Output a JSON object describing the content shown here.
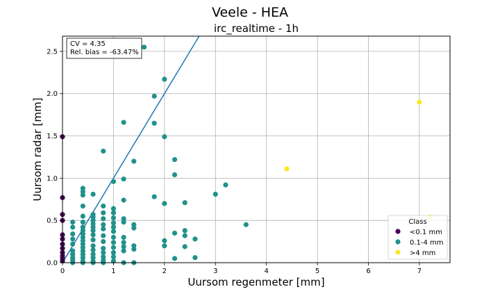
{
  "chart_data": {
    "type": "scatter",
    "suptitle": "Veele - HEA",
    "title": "irc_realtime - 1h",
    "xlabel": "Uursom regenmeter [mm]",
    "ylabel": "Uursom radar [mm]",
    "xlim": [
      0,
      7.6
    ],
    "ylim": [
      0,
      2.68
    ],
    "xticks": [
      0,
      1,
      2,
      3,
      4,
      5,
      6,
      7
    ],
    "yticks": [
      0.0,
      0.5,
      1.0,
      1.5,
      2.0,
      2.5
    ],
    "ytick_labels": [
      "0.0",
      "0.5",
      "1.0",
      "1.5",
      "2.0",
      "2.5"
    ],
    "grid": true,
    "stats": {
      "cv": "CV = 4.35",
      "bias": "Rel. bias = -63.47%"
    },
    "fit_line": {
      "x": [
        0,
        2.68
      ],
      "y": [
        0,
        2.68
      ]
    },
    "legend": {
      "title": "Class",
      "position": "lower right"
    },
    "series": [
      {
        "name": "<0.1 mm",
        "color": "#440154",
        "points": [
          [
            0,
            1.49
          ],
          [
            0,
            0.77
          ],
          [
            0,
            0.57
          ],
          [
            0,
            0.5
          ],
          [
            0,
            0.33
          ],
          [
            0,
            0.28
          ],
          [
            0,
            0.22
          ],
          [
            0,
            0.17
          ],
          [
            0,
            0.12
          ],
          [
            0,
            0.08
          ],
          [
            0,
            0.05
          ],
          [
            0,
            0.02
          ]
        ]
      },
      {
        "name": "0.1-4 mm",
        "color": "#21918c",
        "points": [
          [
            0.2,
            0.48
          ],
          [
            0.2,
            0.42
          ],
          [
            0.2,
            0.34
          ],
          [
            0.2,
            0.28
          ],
          [
            0.2,
            0.22
          ],
          [
            0.2,
            0.14
          ],
          [
            0.2,
            0.1
          ],
          [
            0.2,
            0.06
          ],
          [
            0.2,
            0.03
          ],
          [
            0.2,
            0.0
          ],
          [
            0.4,
            0.88
          ],
          [
            0.4,
            0.84
          ],
          [
            0.4,
            0.8
          ],
          [
            0.4,
            0.67
          ],
          [
            0.4,
            0.55
          ],
          [
            0.4,
            0.48
          ],
          [
            0.4,
            0.42
          ],
          [
            0.4,
            0.38
          ],
          [
            0.4,
            0.34
          ],
          [
            0.4,
            0.3
          ],
          [
            0.4,
            0.26
          ],
          [
            0.4,
            0.22
          ],
          [
            0.4,
            0.18
          ],
          [
            0.4,
            0.14
          ],
          [
            0.4,
            0.1
          ],
          [
            0.4,
            0.06
          ],
          [
            0.4,
            0.02
          ],
          [
            0.4,
            0.0
          ],
          [
            0.6,
            0.81
          ],
          [
            0.6,
            0.57
          ],
          [
            0.6,
            0.54
          ],
          [
            0.6,
            0.5
          ],
          [
            0.6,
            0.46
          ],
          [
            0.6,
            0.42
          ],
          [
            0.6,
            0.38
          ],
          [
            0.6,
            0.33
          ],
          [
            0.6,
            0.27
          ],
          [
            0.6,
            0.2
          ],
          [
            0.6,
            0.15
          ],
          [
            0.6,
            0.1
          ],
          [
            0.6,
            0.06
          ],
          [
            0.6,
            0.02
          ],
          [
            0.6,
            0.0
          ],
          [
            0.8,
            1.32
          ],
          [
            0.8,
            0.67
          ],
          [
            0.8,
            0.59
          ],
          [
            0.8,
            0.52
          ],
          [
            0.8,
            0.45
          ],
          [
            0.8,
            0.4
          ],
          [
            0.8,
            0.32
          ],
          [
            0.8,
            0.25
          ],
          [
            0.8,
            0.17
          ],
          [
            0.8,
            0.12
          ],
          [
            0.8,
            0.07
          ],
          [
            0.8,
            0.03
          ],
          [
            0.8,
            0.0
          ],
          [
            1.0,
            0.96
          ],
          [
            1.0,
            0.64
          ],
          [
            1.0,
            0.59
          ],
          [
            1.0,
            0.53
          ],
          [
            1.0,
            0.47
          ],
          [
            1.0,
            0.42
          ],
          [
            1.0,
            0.37
          ],
          [
            1.0,
            0.3
          ],
          [
            1.0,
            0.24
          ],
          [
            1.0,
            0.18
          ],
          [
            1.0,
            0.12
          ],
          [
            1.0,
            0.07
          ],
          [
            1.0,
            0.02
          ],
          [
            1.2,
            1.66
          ],
          [
            1.2,
            0.99
          ],
          [
            1.2,
            0.74
          ],
          [
            1.2,
            0.52
          ],
          [
            1.2,
            0.48
          ],
          [
            1.2,
            0.3
          ],
          [
            1.2,
            0.24
          ],
          [
            1.2,
            0.19
          ],
          [
            1.2,
            0.14
          ],
          [
            1.2,
            0.0
          ],
          [
            1.4,
            1.2
          ],
          [
            1.4,
            0.45
          ],
          [
            1.4,
            0.41
          ],
          [
            1.4,
            0.2
          ],
          [
            1.4,
            0.16
          ],
          [
            1.4,
            0.0
          ],
          [
            1.6,
            2.55
          ],
          [
            1.8,
            1.97
          ],
          [
            1.8,
            1.65
          ],
          [
            1.8,
            0.78
          ],
          [
            2.0,
            2.17
          ],
          [
            2.0,
            1.49
          ],
          [
            2.0,
            0.7
          ],
          [
            2.0,
            0.26
          ],
          [
            2.0,
            0.2
          ],
          [
            2.2,
            1.22
          ],
          [
            2.2,
            1.04
          ],
          [
            2.2,
            0.35
          ],
          [
            2.2,
            0.05
          ],
          [
            2.4,
            0.71
          ],
          [
            2.4,
            0.38
          ],
          [
            2.4,
            0.32
          ],
          [
            2.4,
            0.19
          ],
          [
            2.6,
            0.28
          ],
          [
            2.6,
            0.06
          ],
          [
            3.0,
            0.81
          ],
          [
            3.2,
            0.92
          ],
          [
            3.6,
            0.45
          ]
        ]
      },
      {
        "name": ">4 mm",
        "color": "#fde725",
        "points": [
          [
            4.4,
            1.11
          ],
          [
            7.0,
            1.9
          ],
          [
            7.2,
            0.54
          ]
        ]
      }
    ]
  }
}
